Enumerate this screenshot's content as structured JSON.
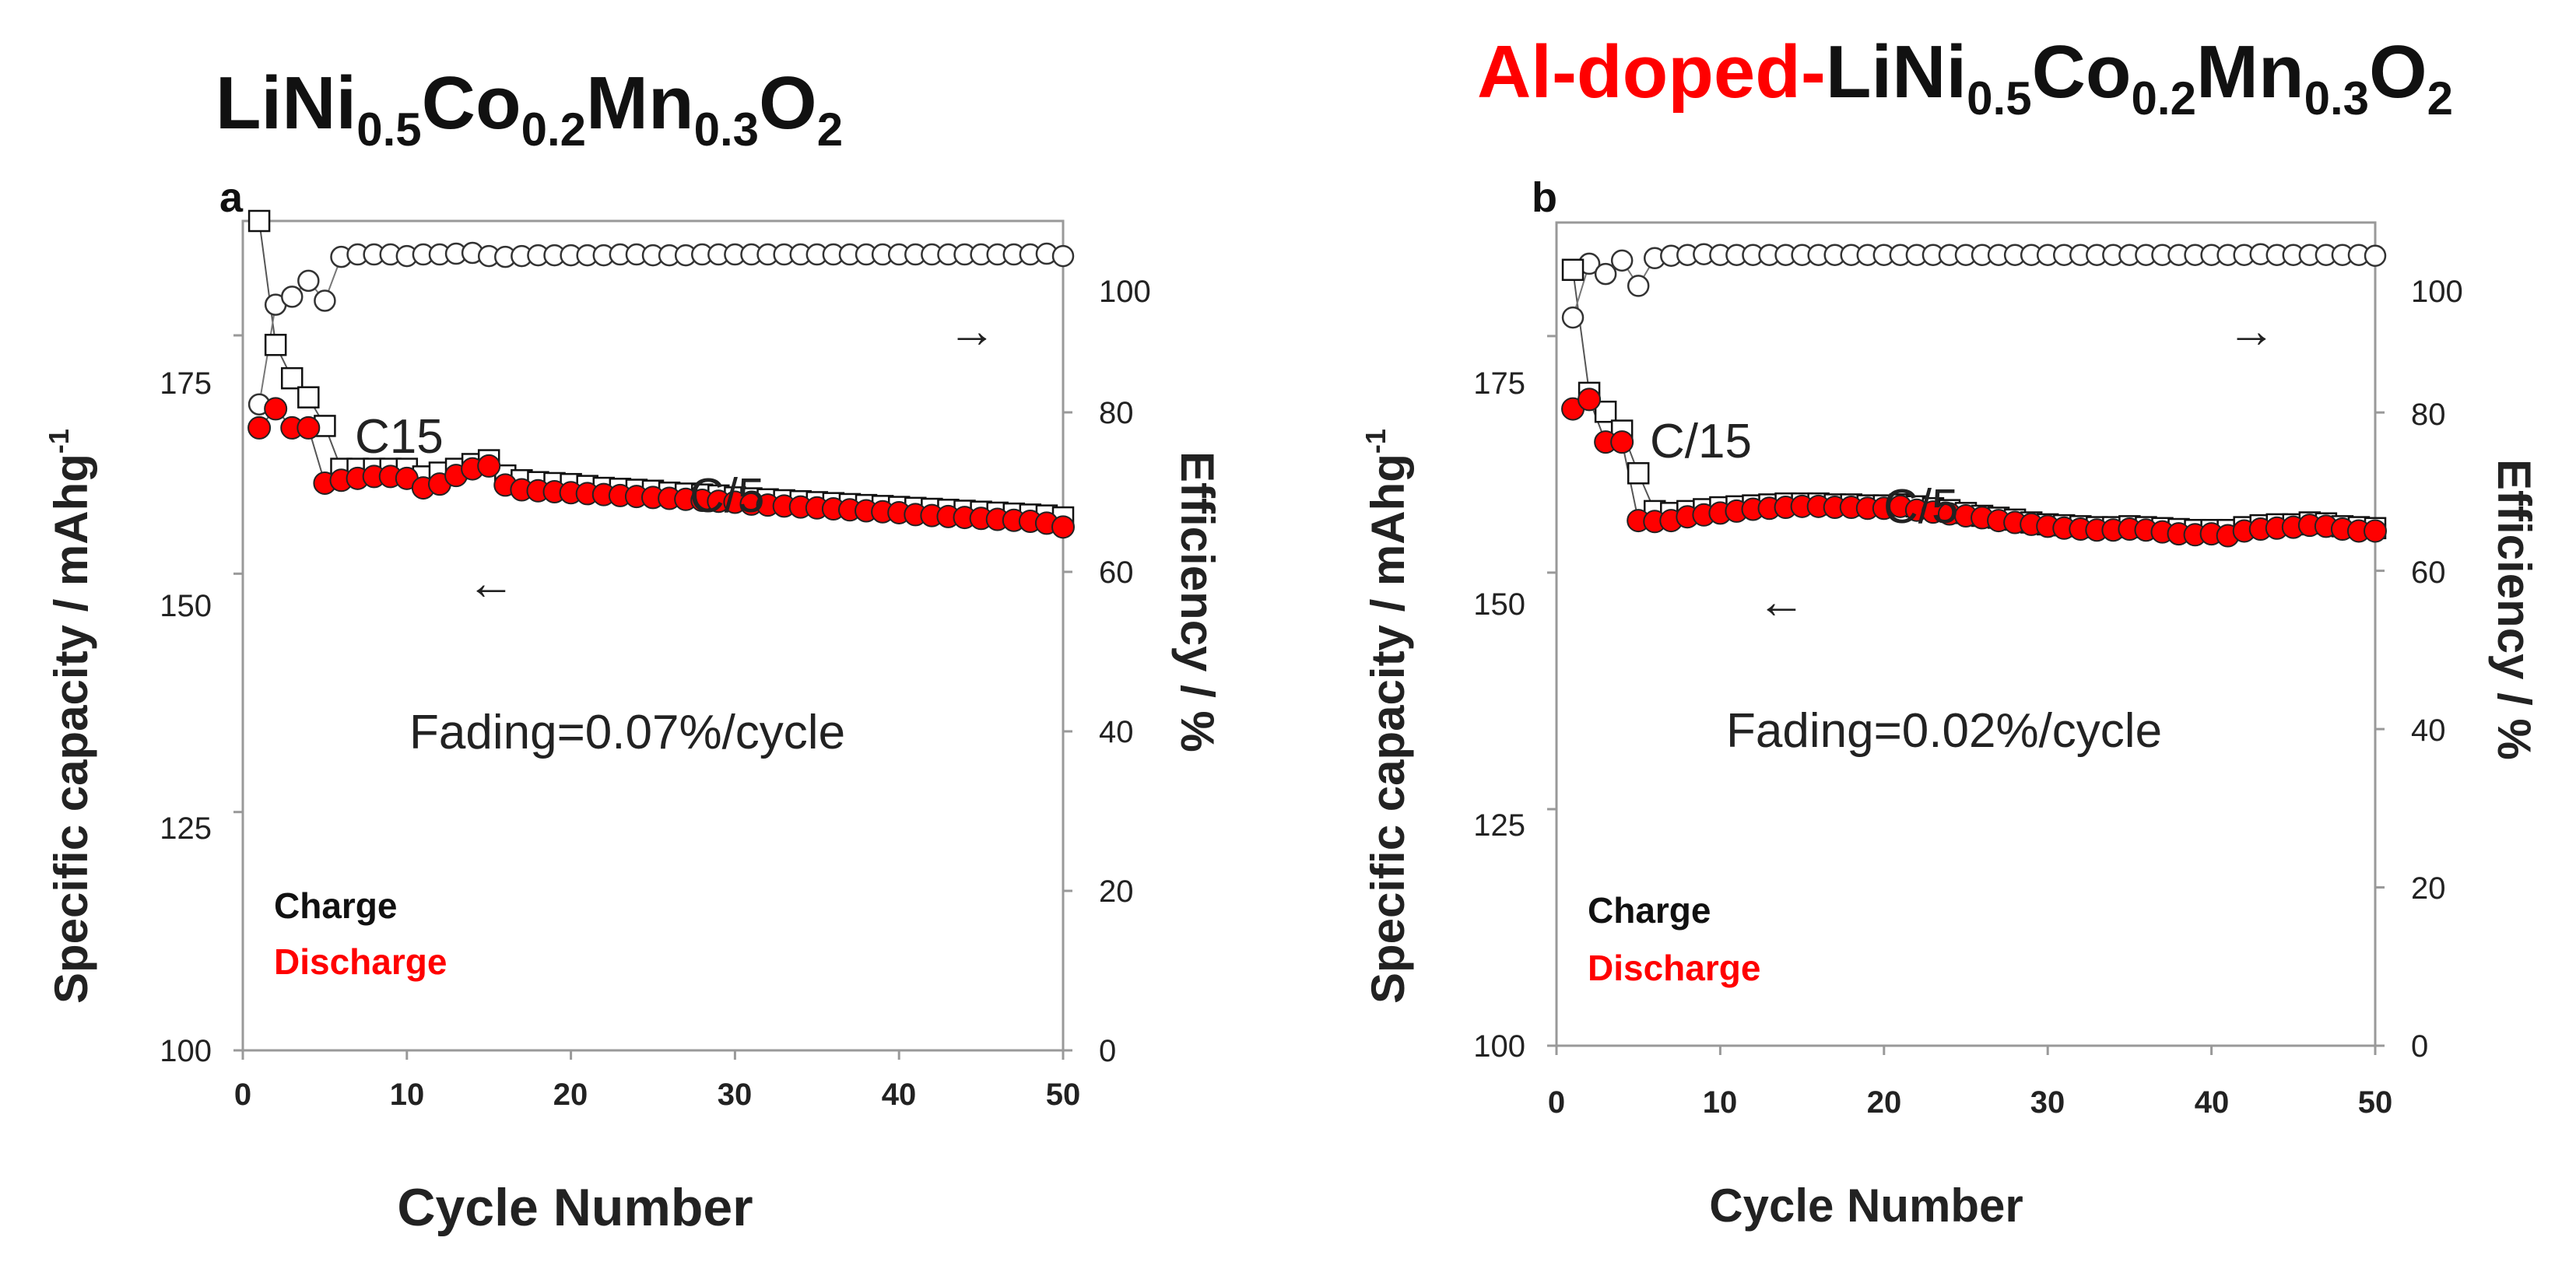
{
  "figure": {
    "charge_color": "#111111",
    "discharge_color": "#ff0000",
    "doped_color": "#ff0000"
  },
  "chart_data": [
    {
      "type": "scatter",
      "panel_label": "a",
      "title": {
        "prefix": "",
        "main": "LiNi",
        "s1": "0.5",
        "m2": "Co",
        "s2": "0.2",
        "m3": "Mn",
        "s3": "0.3",
        "m4": "O",
        "s4": "2"
      },
      "xlabel": "Cycle Number",
      "ylabel_left": "Specific capacity /  mAhg",
      "ylabel_left_sup": "-1",
      "ylabel_right": "Efficiency / %",
      "xlim": [
        0,
        50
      ],
      "ylim_left": [
        100,
        187
      ],
      "ylim_right": [
        0,
        104
      ],
      "xticks": [
        "0",
        "10",
        "20",
        "30",
        "40",
        "50"
      ],
      "yticks_left": [
        "100",
        "125",
        "150",
        "175"
      ],
      "yticks_right": [
        "0",
        "20",
        "40",
        "60",
        "80",
        "100"
      ],
      "annotations": {
        "initial_rate": "C15",
        "rate": "C/5",
        "fading": "Fading=0.07%/cycle",
        "arrow_left": "←",
        "arrow_right": "→"
      },
      "legend": {
        "charge": "Charge",
        "discharge": "Discharge"
      },
      "series": [
        {
          "name": "Charge",
          "x": [
            1,
            2,
            3,
            4,
            5,
            6,
            7,
            8,
            9,
            10,
            11,
            12,
            13,
            14,
            15,
            16,
            17,
            18,
            19,
            20,
            21,
            22,
            23,
            24,
            25,
            26,
            27,
            28,
            29,
            30,
            31,
            32,
            33,
            34,
            35,
            36,
            37,
            38,
            39,
            40,
            41,
            42,
            43,
            44,
            45,
            46,
            47,
            48,
            49,
            50
          ],
          "values": [
            187,
            174,
            170.5,
            168.5,
            165.5,
            161,
            161,
            161,
            161,
            161,
            160.2,
            160.6,
            161,
            161.5,
            161.9,
            160.3,
            159.8,
            159.6,
            159.5,
            159.4,
            159.2,
            159,
            158.9,
            158.8,
            158.7,
            158.5,
            158.4,
            158.3,
            158.2,
            158,
            157.9,
            157.8,
            157.7,
            157.6,
            157.5,
            157.4,
            157.3,
            157.2,
            157.1,
            157,
            156.9,
            156.8,
            156.7,
            156.6,
            156.5,
            156.4,
            156.3,
            156.2,
            156.1,
            155.9
          ]
        },
        {
          "name": "Discharge",
          "x": [
            1,
            2,
            3,
            4,
            5,
            6,
            7,
            8,
            9,
            10,
            11,
            12,
            13,
            14,
            15,
            16,
            17,
            18,
            19,
            20,
            21,
            22,
            23,
            24,
            25,
            26,
            27,
            28,
            29,
            30,
            31,
            32,
            33,
            34,
            35,
            36,
            37,
            38,
            39,
            40,
            41,
            42,
            43,
            44,
            45,
            46,
            47,
            48,
            49,
            50
          ],
          "values": [
            165.3,
            167.3,
            165.3,
            165.3,
            159.5,
            159.8,
            160,
            160.2,
            160.2,
            160,
            159,
            159.4,
            160.3,
            161,
            161.3,
            159.3,
            158.8,
            158.7,
            158.6,
            158.5,
            158.4,
            158.3,
            158.2,
            158.1,
            158,
            157.9,
            157.8,
            157.7,
            157.6,
            157.5,
            157.3,
            157.2,
            157.1,
            157,
            156.9,
            156.8,
            156.7,
            156.6,
            156.5,
            156.4,
            156.2,
            156.1,
            156,
            155.9,
            155.8,
            155.7,
            155.6,
            155.5,
            155.3,
            154.9
          ]
        },
        {
          "name": "Efficiency",
          "x": [
            1,
            2,
            3,
            4,
            5,
            6,
            7,
            8,
            9,
            10,
            11,
            12,
            13,
            14,
            15,
            16,
            17,
            18,
            19,
            20,
            21,
            22,
            23,
            24,
            25,
            26,
            27,
            28,
            29,
            30,
            31,
            32,
            33,
            34,
            35,
            36,
            37,
            38,
            39,
            40,
            41,
            42,
            43,
            44,
            45,
            46,
            47,
            48,
            49,
            50
          ],
          "values": [
            81,
            93.5,
            94.5,
            96.5,
            94,
            99.5,
            99.8,
            99.8,
            99.8,
            99.6,
            99.8,
            99.8,
            99.9,
            100,
            99.6,
            99.5,
            99.6,
            99.7,
            99.7,
            99.7,
            99.7,
            99.7,
            99.8,
            99.8,
            99.7,
            99.7,
            99.7,
            99.8,
            99.8,
            99.8,
            99.8,
            99.8,
            99.8,
            99.8,
            99.8,
            99.8,
            99.8,
            99.8,
            99.8,
            99.8,
            99.8,
            99.8,
            99.8,
            99.8,
            99.8,
            99.8,
            99.8,
            99.8,
            99.9,
            99.6
          ]
        }
      ]
    },
    {
      "type": "scatter",
      "panel_label": "b",
      "title": {
        "prefix": "Al-doped-",
        "main": "LiNi",
        "s1": "0.5",
        "m2": "Co",
        "s2": "0.2",
        "m3": "Mn",
        "s3": "0.3",
        "m4": "O",
        "s4": "2"
      },
      "xlabel": "Cycle Number",
      "ylabel_left": "Specific capacity /  mAhg",
      "ylabel_left_sup": "-1",
      "ylabel_right": "Efficiency / %",
      "xlim": [
        0,
        50
      ],
      "ylim_left": [
        100,
        187
      ],
      "ylim_right": [
        0,
        104
      ],
      "xticks": [
        "0",
        "10",
        "20",
        "30",
        "40",
        "50"
      ],
      "yticks_left": [
        "100",
        "125",
        "150",
        "175"
      ],
      "yticks_right": [
        "0",
        "20",
        "40",
        "60",
        "80",
        "100"
      ],
      "annotations": {
        "initial_rate": "C/15",
        "rate": "C/5",
        "fading": "Fading=0.02%/cycle",
        "arrow_left": "←",
        "arrow_right": "→"
      },
      "legend": {
        "charge": "Charge",
        "discharge": "Discharge"
      },
      "series": [
        {
          "name": "Charge",
          "x": [
            1,
            2,
            3,
            4,
            5,
            6,
            7,
            8,
            9,
            10,
            11,
            12,
            13,
            14,
            15,
            16,
            17,
            18,
            19,
            20,
            21,
            22,
            23,
            24,
            25,
            26,
            27,
            28,
            29,
            30,
            31,
            32,
            33,
            34,
            35,
            36,
            37,
            38,
            39,
            40,
            41,
            42,
            43,
            44,
            45,
            46,
            47,
            48,
            49,
            50
          ],
          "values": [
            182,
            169,
            167,
            165,
            160.5,
            156.5,
            156.3,
            156.5,
            156.7,
            156.9,
            157,
            157.1,
            157.2,
            157.3,
            157.3,
            157.3,
            157.2,
            157.2,
            157.1,
            157.1,
            157.2,
            157,
            156.8,
            156.6,
            156.3,
            156,
            155.8,
            155.6,
            155.3,
            155.1,
            155,
            154.9,
            154.8,
            154.8,
            154.9,
            154.8,
            154.7,
            154.6,
            154.5,
            154.5,
            154.5,
            154.8,
            155,
            155.1,
            155.1,
            155.3,
            155.2,
            154.9,
            154.8,
            154.7
          ]
        },
        {
          "name": "Discharge",
          "x": [
            1,
            2,
            3,
            4,
            5,
            6,
            7,
            8,
            9,
            10,
            11,
            12,
            13,
            14,
            15,
            16,
            17,
            18,
            19,
            20,
            21,
            22,
            23,
            24,
            25,
            26,
            27,
            28,
            29,
            30,
            31,
            32,
            33,
            34,
            35,
            36,
            37,
            38,
            39,
            40,
            41,
            42,
            43,
            44,
            45,
            46,
            47,
            48,
            49,
            50
          ],
          "values": [
            167.3,
            168.3,
            163.8,
            163.8,
            155.5,
            155.4,
            155.5,
            155.9,
            156.1,
            156.3,
            156.5,
            156.7,
            156.8,
            156.9,
            157,
            157,
            156.9,
            156.9,
            156.8,
            156.8,
            157,
            156.6,
            156.4,
            156.2,
            156,
            155.8,
            155.5,
            155.3,
            155.1,
            154.9,
            154.7,
            154.6,
            154.5,
            154.5,
            154.6,
            154.5,
            154.3,
            154.1,
            154,
            154.1,
            153.9,
            154.4,
            154.6,
            154.7,
            154.8,
            155,
            154.9,
            154.6,
            154.4,
            154.4
          ]
        },
        {
          "name": "Efficiency",
          "x": [
            1,
            2,
            3,
            4,
            5,
            6,
            7,
            8,
            9,
            10,
            11,
            12,
            13,
            14,
            15,
            16,
            17,
            18,
            19,
            20,
            21,
            22,
            23,
            24,
            25,
            26,
            27,
            28,
            29,
            30,
            31,
            32,
            33,
            34,
            35,
            36,
            37,
            38,
            39,
            40,
            41,
            42,
            43,
            44,
            45,
            46,
            47,
            48,
            49,
            50
          ],
          "values": [
            92,
            98.8,
            97.5,
            99.2,
            96,
            99.5,
            99.8,
            99.9,
            100,
            99.9,
            99.9,
            99.9,
            99.9,
            99.9,
            99.9,
            99.9,
            99.9,
            99.9,
            99.9,
            99.9,
            99.9,
            99.9,
            99.9,
            99.9,
            99.9,
            99.9,
            99.9,
            99.9,
            99.9,
            99.9,
            99.9,
            99.9,
            99.9,
            99.9,
            99.9,
            99.9,
            99.9,
            99.9,
            99.9,
            99.9,
            99.9,
            99.9,
            100,
            99.9,
            99.9,
            99.9,
            99.9,
            99.9,
            99.9,
            99.8
          ]
        }
      ]
    }
  ]
}
